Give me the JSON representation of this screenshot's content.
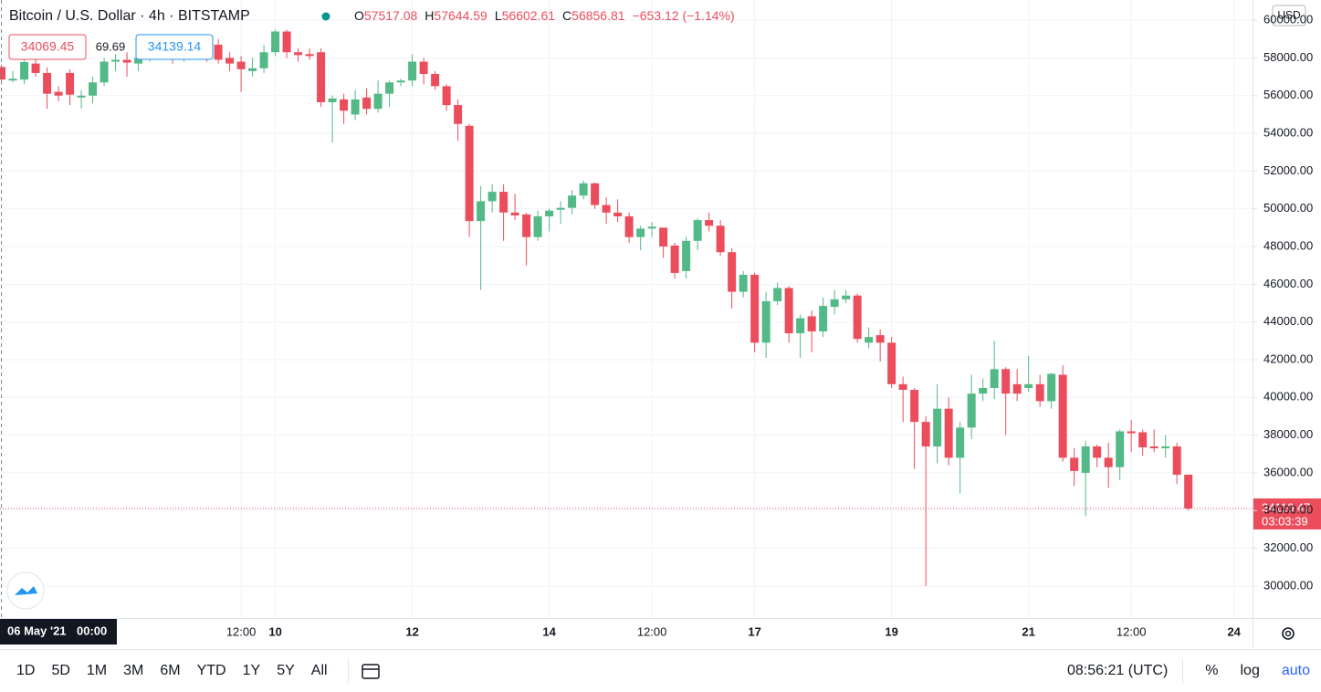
{
  "header": {
    "bid": 34069.45,
    "spread": 69.69,
    "ask": 34139.14,
    "currency": "USD"
  },
  "chart_data": {
    "type": "candlestick",
    "title": "Bitcoin / U.S. Dollar · 4h · BITSTAMP",
    "legend_labels": [
      "O",
      "H",
      "L",
      "C"
    ],
    "change": "−653.12 (−1.14%)",
    "up_color": "#53b987",
    "down_color": "#eb4d5c",
    "grid": true,
    "crosshair_date": "06 May '21",
    "crosshair_time": "00:00",
    "countdown": "03:03:39",
    "x": [
      "2021-05-06T00:00",
      "2021-05-06T04:00",
      "2021-05-06T08:00",
      "2021-05-06T12:00",
      "2021-05-06T16:00",
      "2021-05-06T20:00",
      "2021-05-07T00:00",
      "2021-05-07T04:00",
      "2021-05-07T08:00",
      "2021-05-07T12:00",
      "2021-05-07T16:00",
      "2021-05-07T20:00",
      "2021-05-08T00:00",
      "2021-05-08T04:00",
      "2021-05-08T08:00",
      "2021-05-08T12:00",
      "2021-05-08T16:00",
      "2021-05-08T20:00",
      "2021-05-09T00:00",
      "2021-05-09T04:00",
      "2021-05-09T08:00",
      "2021-05-09T12:00",
      "2021-05-09T16:00",
      "2021-05-09T20:00",
      "2021-05-10T00:00",
      "2021-05-10T04:00",
      "2021-05-10T08:00",
      "2021-05-10T12:00",
      "2021-05-10T16:00",
      "2021-05-10T20:00",
      "2021-05-11T00:00",
      "2021-05-11T04:00",
      "2021-05-11T08:00",
      "2021-05-11T12:00",
      "2021-05-11T16:00",
      "2021-05-11T20:00",
      "2021-05-12T00:00",
      "2021-05-12T04:00",
      "2021-05-12T08:00",
      "2021-05-12T12:00",
      "2021-05-12T16:00",
      "2021-05-12T20:00",
      "2021-05-13T00:00",
      "2021-05-13T04:00",
      "2021-05-13T08:00",
      "2021-05-13T12:00",
      "2021-05-13T16:00",
      "2021-05-13T20:00",
      "2021-05-14T00:00",
      "2021-05-14T04:00",
      "2021-05-14T08:00",
      "2021-05-14T12:00",
      "2021-05-14T16:00",
      "2021-05-14T20:00",
      "2021-05-15T00:00",
      "2021-05-15T04:00",
      "2021-05-15T08:00",
      "2021-05-15T12:00",
      "2021-05-15T16:00",
      "2021-05-15T20:00",
      "2021-05-16T00:00",
      "2021-05-16T04:00",
      "2021-05-16T08:00",
      "2021-05-16T12:00",
      "2021-05-16T16:00",
      "2021-05-16T20:00",
      "2021-05-17T00:00",
      "2021-05-17T04:00",
      "2021-05-17T08:00",
      "2021-05-17T12:00",
      "2021-05-17T16:00",
      "2021-05-17T20:00",
      "2021-05-18T00:00",
      "2021-05-18T04:00",
      "2021-05-18T08:00",
      "2021-05-18T12:00",
      "2021-05-18T16:00",
      "2021-05-18T20:00",
      "2021-05-19T00:00",
      "2021-05-19T04:00",
      "2021-05-19T08:00",
      "2021-05-19T12:00",
      "2021-05-19T16:00",
      "2021-05-19T20:00",
      "2021-05-20T00:00",
      "2021-05-20T04:00",
      "2021-05-20T08:00",
      "2021-05-20T12:00",
      "2021-05-20T16:00",
      "2021-05-20T20:00",
      "2021-05-21T00:00",
      "2021-05-21T04:00",
      "2021-05-21T08:00",
      "2021-05-21T12:00",
      "2021-05-21T16:00",
      "2021-05-21T20:00",
      "2021-05-22T00:00",
      "2021-05-22T04:00",
      "2021-05-22T08:00",
      "2021-05-22T12:00",
      "2021-05-22T16:00",
      "2021-05-22T20:00",
      "2021-05-23T00:00",
      "2021-05-23T04:00",
      "2021-05-23T08:00"
    ],
    "open": [
      57517.08,
      56800,
      56850,
      57700,
      57200,
      56200,
      57200,
      55900,
      56000,
      56700,
      57800,
      57900,
      57700,
      58000,
      58100,
      58200,
      58000,
      58200,
      58400,
      58700,
      58000,
      57800,
      57300,
      57450,
      58300,
      59400,
      58300,
      58200,
      58300,
      55650,
      55800,
      55000,
      55900,
      55300,
      56100,
      56700,
      56800,
      57800,
      57150,
      56500,
      55500,
      54400,
      49350,
      50400,
      50900,
      49800,
      49700,
      48500,
      49600,
      49950,
      50050,
      50700,
      51350,
      50200,
      49800,
      49600,
      48500,
      48950,
      49000,
      48050,
      46700,
      48300,
      49400,
      49100,
      47700,
      45600,
      46500,
      42900,
      45100,
      45800,
      43400,
      44300,
      43500,
      44800,
      45200,
      45400,
      42900,
      43300,
      42900,
      40700,
      40400,
      38700,
      37400,
      39400,
      36800,
      38400,
      40200,
      40500,
      41500,
      40700,
      40500,
      40700,
      39800,
      41200,
      36800,
      36000,
      37400,
      36800,
      36300,
      38200,
      38150,
      37400,
      37300,
      37400,
      35900
    ],
    "high": [
      57644.59,
      57300,
      58100,
      58000,
      57500,
      56500,
      57400,
      56300,
      57000,
      58000,
      58200,
      58300,
      58600,
      58400,
      58500,
      58400,
      58600,
      58700,
      59000,
      59000,
      58300,
      58100,
      58000,
      58700,
      59500,
      59500,
      58500,
      58500,
      58500,
      56000,
      56100,
      56300,
      56400,
      56800,
      56800,
      56900,
      58200,
      58000,
      57300,
      56600,
      55800,
      54500,
      51200,
      51300,
      51300,
      50800,
      49800,
      49900,
      50000,
      50400,
      51000,
      51500,
      51400,
      50600,
      50500,
      49800,
      49100,
      49300,
      49000,
      48200,
      48500,
      49500,
      49800,
      49400,
      47900,
      46700,
      46600,
      45600,
      46100,
      45900,
      44400,
      44600,
      45300,
      45700,
      45700,
      45500,
      43700,
      43600,
      43200,
      41100,
      40500,
      39000,
      40700,
      40000,
      38700,
      41200,
      41000,
      43000,
      41600,
      41500,
      42200,
      41200,
      41300,
      41700,
      37300,
      37700,
      37500,
      37600,
      38300,
      38800,
      38300,
      38300,
      38000,
      37600,
      35900
    ],
    "low": [
      56602.61,
      56700,
      56600,
      57000,
      55300,
      55700,
      55500,
      55300,
      55600,
      56500,
      57300,
      57000,
      57300,
      57800,
      57900,
      57700,
      57800,
      57900,
      57800,
      57700,
      57300,
      56200,
      57000,
      57200,
      58100,
      58000,
      57800,
      57900,
      55400,
      53500,
      54500,
      54700,
      55000,
      55100,
      55400,
      56500,
      56500,
      56600,
      56300,
      55200,
      53600,
      48500,
      45700,
      49800,
      48300,
      49400,
      47000,
      48300,
      48800,
      49200,
      49700,
      50500,
      50000,
      49200,
      49300,
      48200,
      47800,
      48500,
      47400,
      46300,
      46300,
      47800,
      48800,
      47500,
      44700,
      45300,
      42400,
      42100,
      44900,
      42900,
      42100,
      42400,
      43200,
      44400,
      45000,
      42900,
      42600,
      41900,
      40500,
      38700,
      36200,
      30000,
      36500,
      36400,
      34900,
      37800,
      39800,
      39900,
      38000,
      39800,
      40300,
      39500,
      39400,
      36600,
      35300,
      33700,
      36300,
      35200,
      35600,
      37100,
      36900,
      37100,
      36800,
      35400,
      34000
    ],
    "close": [
      56856.81,
      56900,
      57780,
      57200,
      56100,
      56000,
      56050,
      56000,
      56700,
      57800,
      57900,
      57750,
      58000,
      58100,
      58200,
      58000,
      58300,
      58400,
      58100,
      57900,
      57700,
      57400,
      57450,
      58300,
      59400,
      58300,
      58150,
      58100,
      55650,
      55850,
      55200,
      55800,
      55300,
      56100,
      56700,
      56800,
      57800,
      57150,
      56500,
      55500,
      54500,
      49350,
      50400,
      50900,
      49800,
      49650,
      48500,
      49600,
      49900,
      50050,
      50700,
      51350,
      50200,
      49800,
      49600,
      48500,
      48950,
      49050,
      48000,
      46600,
      48300,
      49400,
      49100,
      47700,
      45600,
      46500,
      42900,
      45100,
      45800,
      43400,
      44200,
      43500,
      44850,
      45200,
      45400,
      43100,
      43200,
      42900,
      40700,
      40400,
      38700,
      37400,
      39400,
      36800,
      38400,
      40200,
      40500,
      41500,
      40200,
      40200,
      40700,
      39800,
      41250,
      36800,
      36100,
      37400,
      36800,
      36300,
      38200,
      38100,
      37350,
      37300,
      37400,
      35900,
      34110.47
    ],
    "xlim": [
      "2021-05-05T23:30",
      "2021-05-24T06:30"
    ],
    "xticks": [
      {
        "value": "2021-05-09T12:00",
        "label": "12:00"
      },
      {
        "value": "2021-05-10T00:00",
        "label": "10"
      },
      {
        "value": "2021-05-12T00:00",
        "label": "12"
      },
      {
        "value": "2021-05-14T00:00",
        "label": "14"
      },
      {
        "value": "2021-05-15T12:00",
        "label": "12:00"
      },
      {
        "value": "2021-05-17T00:00",
        "label": "17"
      },
      {
        "value": "2021-05-19T00:00",
        "label": "19"
      },
      {
        "value": "2021-05-21T00:00",
        "label": "21"
      },
      {
        "value": "2021-05-22T12:00",
        "label": "12:00"
      },
      {
        "value": "2021-05-24T00:00",
        "label": "24"
      }
    ],
    "ylim": [
      28300,
      61070
    ],
    "yticks": [
      {
        "value": 30000,
        "label": "30000.00"
      },
      {
        "value": 32000,
        "label": "32000.00"
      },
      {
        "value": 34000,
        "label": "34000.00"
      },
      {
        "value": 36000,
        "label": "36000.00"
      },
      {
        "value": 38000,
        "label": "38000.00"
      },
      {
        "value": 40000,
        "label": "40000.00"
      },
      {
        "value": 42000,
        "label": "42000.00"
      },
      {
        "value": 44000,
        "label": "44000.00"
      },
      {
        "value": 46000,
        "label": "46000.00"
      },
      {
        "value": 48000,
        "label": "48000.00"
      },
      {
        "value": 50000,
        "label": "50000.00"
      },
      {
        "value": 52000,
        "label": "52000.00"
      },
      {
        "value": 54000,
        "label": "54000.00"
      },
      {
        "value": 56000,
        "label": "56000.00"
      },
      {
        "value": 58000,
        "label": "58000.00"
      },
      {
        "value": 60000,
        "label": "60000.00"
      }
    ]
  },
  "toolbar": {
    "ranges": [
      "1D",
      "5D",
      "1M",
      "3M",
      "6M",
      "YTD",
      "1Y",
      "5Y",
      "All"
    ],
    "clock": "08:56:21 (UTC)",
    "options": [
      "%",
      "log",
      "auto"
    ]
  }
}
